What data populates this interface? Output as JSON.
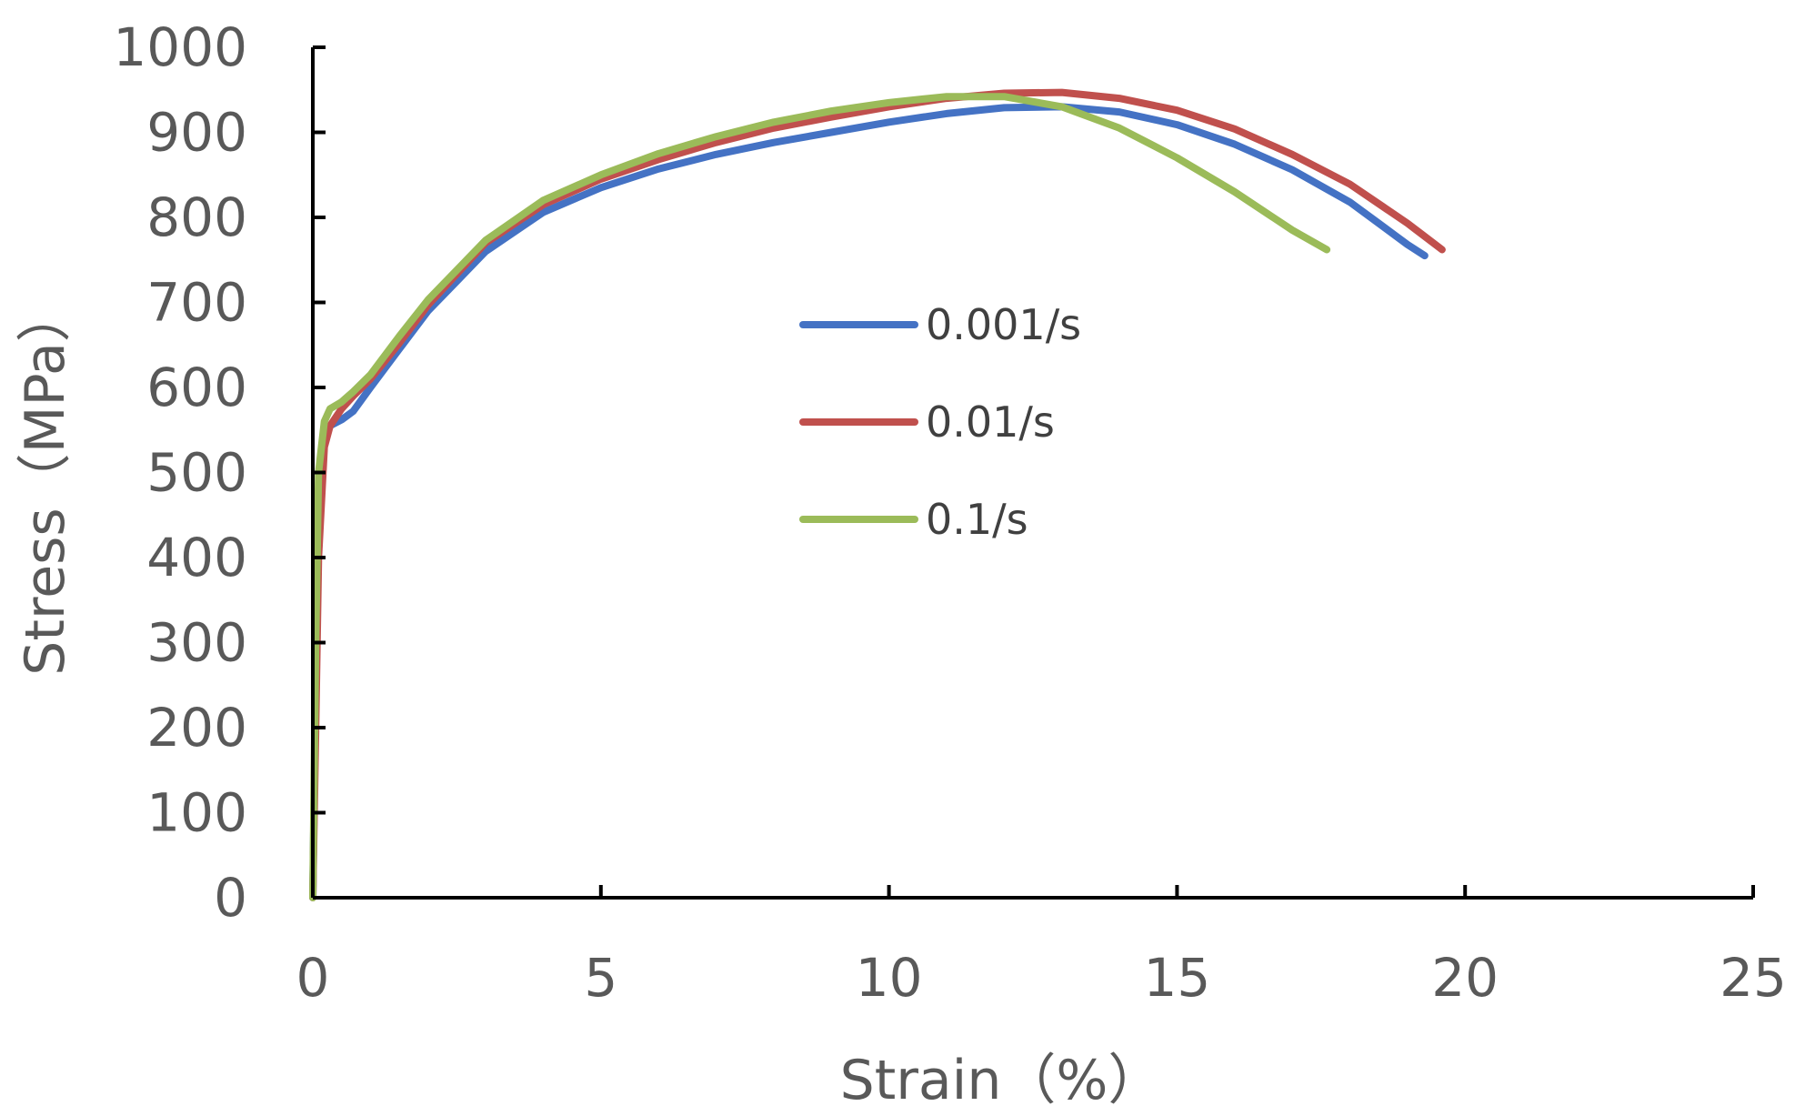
{
  "chart_data": {
    "type": "line",
    "title": "",
    "xlabel": "Strain（%）",
    "ylabel": "Stress（MPa）",
    "xlim": [
      0,
      25
    ],
    "ylim": [
      0,
      1000
    ],
    "x_ticks": [
      0,
      5,
      10,
      15,
      20,
      25
    ],
    "y_ticks": [
      0,
      100,
      200,
      300,
      400,
      500,
      600,
      700,
      800,
      900,
      1000
    ],
    "x_tick_labels": [
      "0",
      "5",
      "10",
      "15",
      "20",
      "25"
    ],
    "y_tick_labels": [
      "0",
      "100",
      "200",
      "300",
      "400",
      "500",
      "600",
      "700",
      "800",
      "900",
      "1000"
    ],
    "grid": false,
    "legend_position": "center",
    "series": [
      {
        "name": "0.001/s",
        "color": "#4472C4",
        "x": [
          0,
          0.05,
          0.1,
          0.2,
          0.3,
          0.5,
          0.7,
          1,
          1.5,
          2,
          3,
          4,
          5,
          6,
          7,
          8,
          9,
          10,
          11,
          12,
          13,
          14,
          15,
          16,
          17,
          18,
          18.5,
          19,
          19.3
        ],
        "y": [
          0,
          250,
          450,
          540,
          555,
          562,
          572,
          600,
          645,
          690,
          760,
          806,
          835,
          857,
          874,
          888,
          900,
          912,
          922,
          929,
          930,
          924,
          909,
          886,
          856,
          818,
          793,
          768,
          755
        ]
      },
      {
        "name": "0.01/s",
        "color": "#C0504D",
        "x": [
          0,
          0.05,
          0.1,
          0.2,
          0.3,
          0.5,
          0.7,
          1,
          1.5,
          2,
          3,
          4,
          5,
          6,
          7,
          8,
          9,
          10,
          11,
          12,
          13,
          14,
          15,
          16,
          17,
          18,
          19,
          19.6
        ],
        "y": [
          0,
          200,
          400,
          530,
          555,
          575,
          590,
          610,
          652,
          697,
          770,
          815,
          845,
          868,
          888,
          905,
          918,
          930,
          940,
          946,
          947,
          940,
          926,
          904,
          874,
          839,
          793,
          762
        ]
      },
      {
        "name": "0.1/s",
        "color": "#9BBB59",
        "x": [
          0,
          0.05,
          0.1,
          0.2,
          0.3,
          0.5,
          0.7,
          1,
          1.5,
          2,
          3,
          4,
          5,
          6,
          7,
          8,
          9,
          10,
          11,
          12,
          13,
          14,
          15,
          16,
          17,
          17.6
        ],
        "y": [
          0,
          300,
          500,
          560,
          575,
          583,
          595,
          615,
          660,
          703,
          773,
          820,
          850,
          875,
          895,
          912,
          925,
          935,
          942,
          942,
          930,
          905,
          870,
          830,
          785,
          762
        ]
      }
    ]
  }
}
